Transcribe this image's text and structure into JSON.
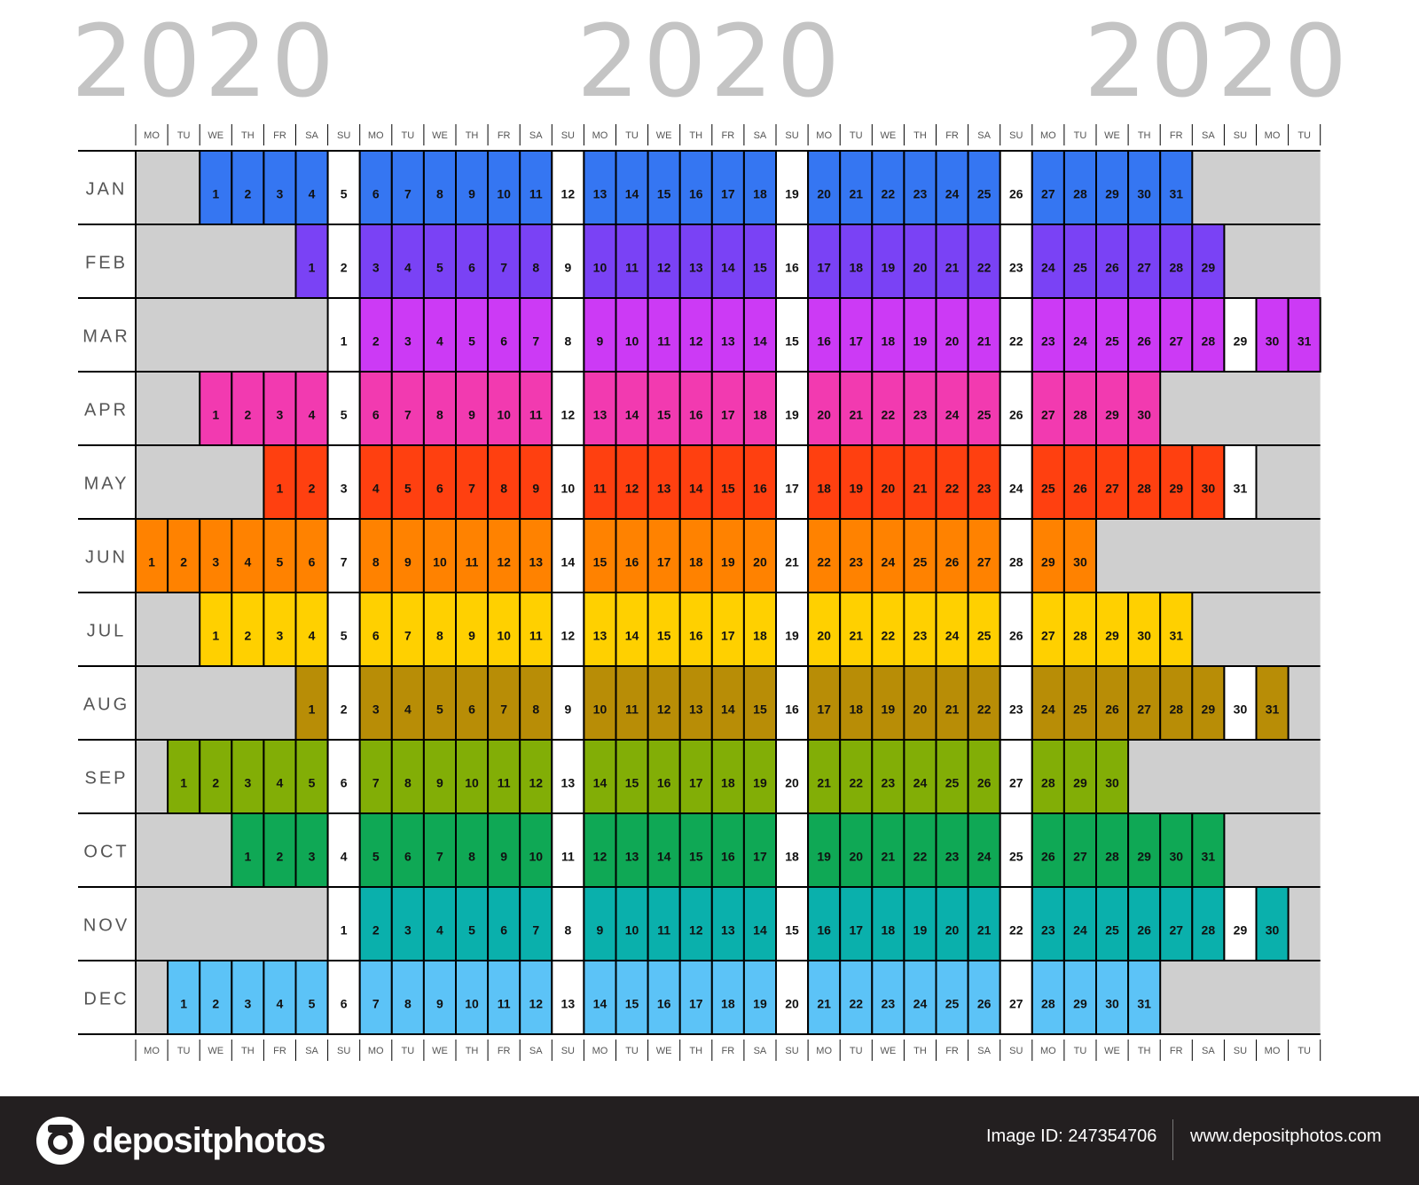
{
  "years": [
    "2020",
    "2020",
    "2020"
  ],
  "weekday_labels": [
    "MO",
    "TU",
    "WE",
    "TH",
    "FR",
    "SA",
    "SU"
  ],
  "colors": {
    "sunday": "#ffffff",
    "empty": "#cfcfcf",
    "grid": "#000000"
  },
  "months": [
    {
      "label": "JAN",
      "start": 2,
      "days": 31,
      "color": "#3576f2"
    },
    {
      "label": "FEB",
      "start": 5,
      "days": 29,
      "color": "#7a42f5"
    },
    {
      "label": "MAR",
      "start": 6,
      "days": 31,
      "color": "#cc3af5"
    },
    {
      "label": "APR",
      "start": 2,
      "days": 30,
      "color": "#f23ab0"
    },
    {
      "label": "MAY",
      "start": 4,
      "days": 31,
      "color": "#ff4010"
    },
    {
      "label": "JUN",
      "start": 0,
      "days": 30,
      "color": "#ff8200"
    },
    {
      "label": "JUL",
      "start": 2,
      "days": 31,
      "color": "#ffd000"
    },
    {
      "label": "AUG",
      "start": 5,
      "days": 31,
      "color": "#b88d06"
    },
    {
      "label": "SEP",
      "start": 1,
      "days": 30,
      "color": "#82ae06"
    },
    {
      "label": "OCT",
      "start": 3,
      "days": 31,
      "color": "#0fa855"
    },
    {
      "label": "NOV",
      "start": 6,
      "days": 30,
      "color": "#0ab0ac"
    },
    {
      "label": "DEC",
      "start": 1,
      "days": 31,
      "color": "#5cc3f7"
    }
  ],
  "footer": {
    "brand": "depositphotos",
    "image_id": "Image ID: 247354706",
    "url": "www.depositphotos.com"
  }
}
